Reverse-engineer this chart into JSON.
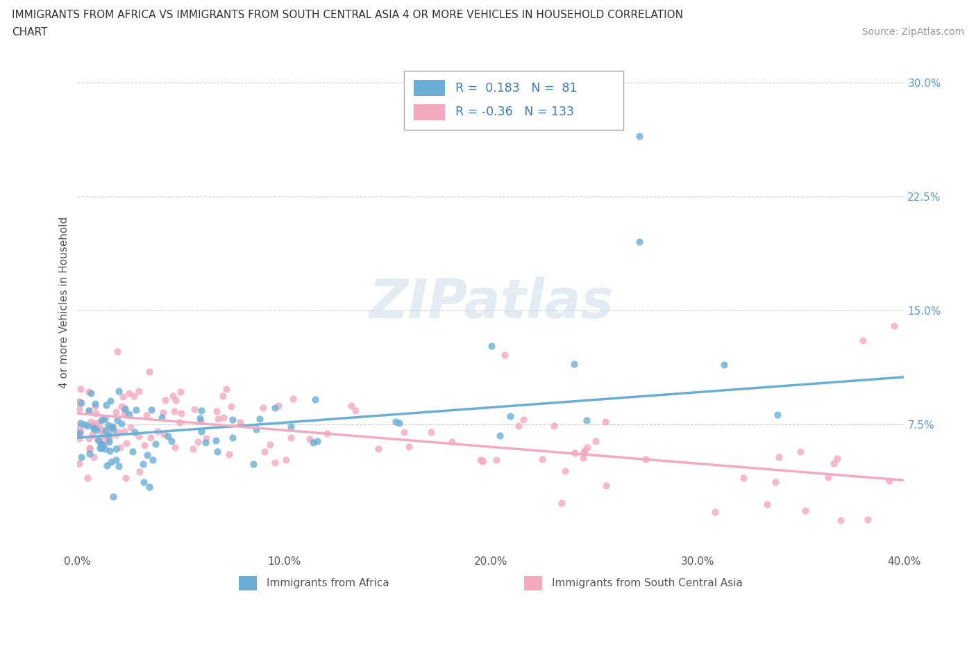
{
  "title_line1": "IMMIGRANTS FROM AFRICA VS IMMIGRANTS FROM SOUTH CENTRAL ASIA 4 OR MORE VEHICLES IN HOUSEHOLD CORRELATION",
  "title_line2": "CHART",
  "source_text": "Source: ZipAtlas.com",
  "ylabel": "4 or more Vehicles in Household",
  "xlim": [
    0.0,
    0.4
  ],
  "ylim": [
    -0.01,
    0.32
  ],
  "xtick_labels": [
    "0.0%",
    "10.0%",
    "20.0%",
    "30.0%",
    "40.0%"
  ],
  "xtick_vals": [
    0.0,
    0.1,
    0.2,
    0.3,
    0.4
  ],
  "ytick_labels": [
    "7.5%",
    "15.0%",
    "22.5%",
    "30.0%"
  ],
  "ytick_vals": [
    0.075,
    0.15,
    0.225,
    0.3
  ],
  "africa_color": "#6aaed6",
  "asia_color": "#f4a9c0",
  "africa_R": 0.183,
  "africa_N": 81,
  "asia_R": -0.36,
  "asia_N": 133,
  "legend_label_africa": "Immigrants from Africa",
  "legend_label_asia": "Immigrants from South Central Asia",
  "watermark": "ZIPatlas",
  "background_color": "#ffffff",
  "grid_color": "#cccccc",
  "africa_trend_y0": 0.066,
  "africa_trend_y1": 0.106,
  "asia_trend_y0": 0.082,
  "asia_trend_y1": 0.038
}
